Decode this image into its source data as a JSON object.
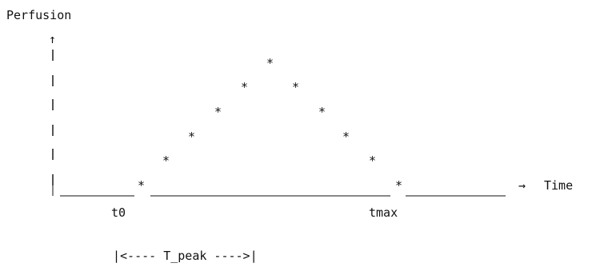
{
  "y_axis_label": "Perfusion",
  "y_arrow_glyph": "↑",
  "x_arrow_glyph": "→",
  "x_axis_label": "Time",
  "marker_glyph": "*",
  "t0_label": "t0",
  "tmax_label": "tmax",
  "peak_span_label": "|<---- T_peak ---->|"
}
